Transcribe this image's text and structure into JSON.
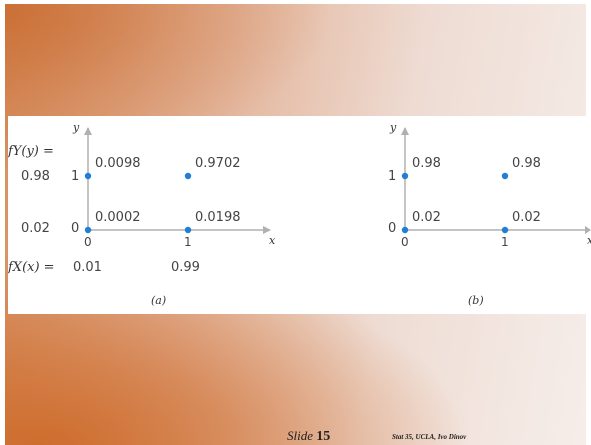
{
  "left_labels": {
    "fy_header": "fY(y) =",
    "fy_values": [
      "0.98",
      "0.02"
    ],
    "fx_header": "fX(x) ="
  },
  "plot_a": {
    "axis_x_label": "x",
    "axis_y_label": "y",
    "x_ticks": [
      "0",
      "1"
    ],
    "y_ticks": [
      "0",
      "1"
    ],
    "points": [
      "0.0098",
      "0.9702",
      "0.0002",
      "0.0198"
    ],
    "fx_values": [
      "0.01",
      "0.99"
    ],
    "caption": "(a)"
  },
  "plot_b": {
    "axis_x_label": "x",
    "axis_y_label": "y",
    "x_ticks": [
      "0",
      "1"
    ],
    "y_ticks": [
      "0",
      "1"
    ],
    "points": [
      "0.98",
      "0.98",
      "0.02",
      "0.02"
    ],
    "caption": "(b)"
  },
  "footer": {
    "slide_label": "Slide",
    "slide_number": "15",
    "credit": "Stat 35, UCLA, Ivo Dinov"
  },
  "colors": {
    "point": "#1f7fd4",
    "axis": "#b0b0b0"
  }
}
